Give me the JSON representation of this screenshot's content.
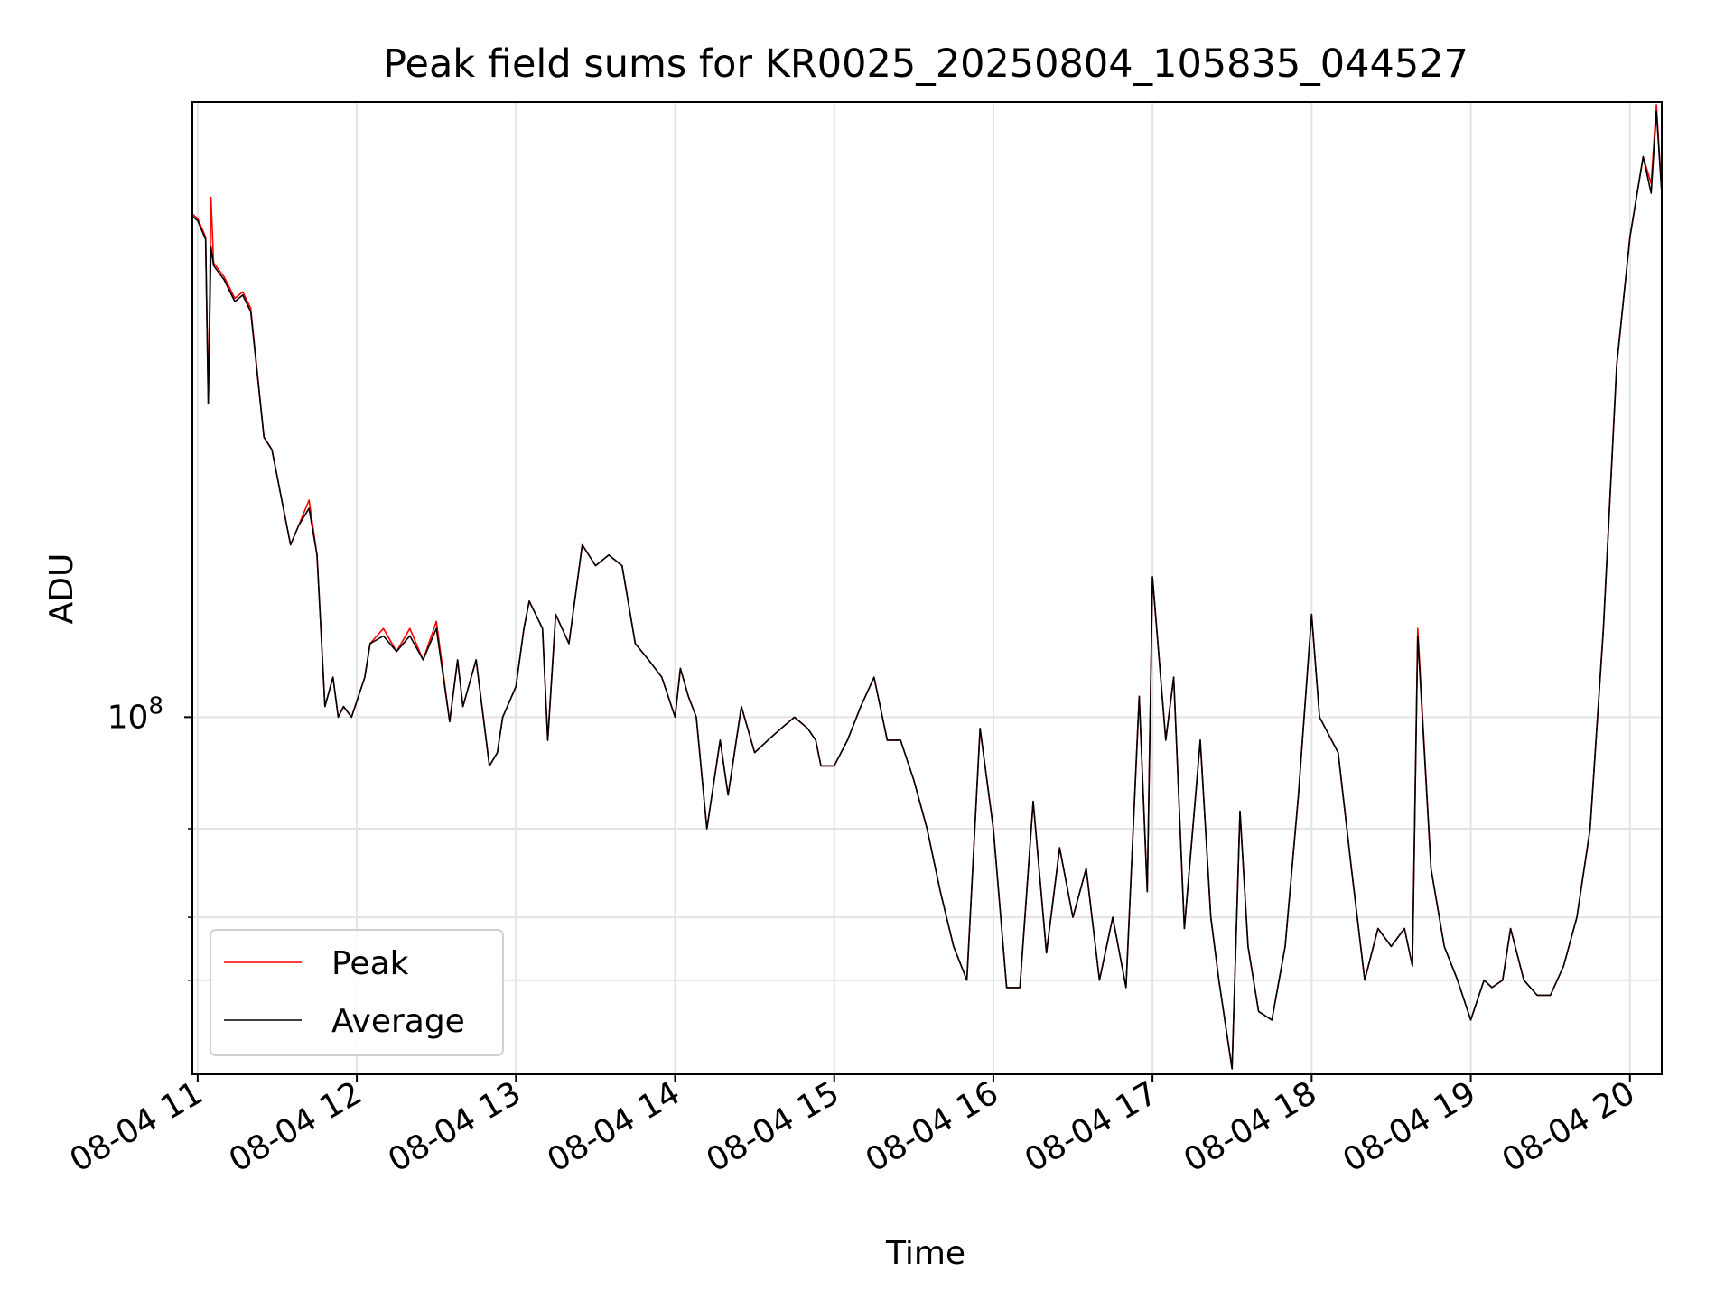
{
  "chart_data": {
    "type": "line",
    "title": "Peak field sums for KR0025_20250804_105835_044527",
    "xlabel": "Time",
    "ylabel": "ADU",
    "yscale": "log",
    "ylim": [
      19500000.0,
      1670000000.0
    ],
    "xlim": [
      "2025-08-04 10:58",
      "2025-08-04 20:12"
    ],
    "grid": true,
    "legend_position": "lower-left",
    "x_tick_labels": [
      "08-04 11",
      "08-04 12",
      "08-04 13",
      "08-04 14",
      "08-04 15",
      "08-04 16",
      "08-04 17",
      "08-04 18",
      "08-04 19",
      "08-04 20"
    ],
    "y_tick_label": {
      "base": "10",
      "exponent": "8"
    },
    "y_major_ticks": [
      100000000.0
    ],
    "y_minor_ticks": [
      30000000.0,
      40000000.0,
      60000000.0
    ],
    "colors": {
      "Peak": "#ff0000",
      "Average": "#000000"
    },
    "x": [
      "10:58",
      "11:00",
      "11:03",
      "11:04",
      "11:05",
      "11:06",
      "11:10",
      "11:14",
      "11:17",
      "11:20",
      "11:25",
      "11:28",
      "11:35",
      "11:38",
      "11:42",
      "11:45",
      "11:48",
      "11:51",
      "11:53",
      "11:55",
      "11:58",
      "12:03",
      "12:05",
      "12:10",
      "12:15",
      "12:20",
      "12:25",
      "12:30",
      "12:35",
      "12:38",
      "12:40",
      "12:45",
      "12:50",
      "12:53",
      "12:55",
      "13:00",
      "13:03",
      "13:05",
      "13:10",
      "13:12",
      "13:15",
      "13:20",
      "13:25",
      "13:30",
      "13:35",
      "13:40",
      "13:45",
      "13:50",
      "13:55",
      "14:00",
      "14:02",
      "14:05",
      "14:08",
      "14:12",
      "14:17",
      "14:20",
      "14:25",
      "14:30",
      "14:35",
      "14:40",
      "14:45",
      "14:50",
      "14:53",
      "14:55",
      "15:00",
      "15:05",
      "15:10",
      "15:15",
      "15:20",
      "15:25",
      "15:30",
      "15:35",
      "15:40",
      "15:45",
      "15:50",
      "15:55",
      "16:00",
      "16:05",
      "16:10",
      "16:15",
      "16:20",
      "16:25",
      "16:30",
      "16:35",
      "16:40",
      "16:45",
      "16:50",
      "16:55",
      "16:58",
      "17:00",
      "17:05",
      "17:08",
      "17:12",
      "17:18",
      "17:22",
      "17:25",
      "17:30",
      "17:33",
      "17:36",
      "17:40",
      "17:45",
      "17:50",
      "17:55",
      "18:00",
      "18:03",
      "18:10",
      "18:15",
      "18:20",
      "18:25",
      "18:30",
      "18:35",
      "18:38",
      "18:40",
      "18:45",
      "18:50",
      "18:55",
      "19:00",
      "19:05",
      "19:08",
      "19:12",
      "19:15",
      "19:20",
      "19:25",
      "19:30",
      "19:35",
      "19:40",
      "19:45",
      "19:50",
      "19:55",
      "20:00",
      "20:05",
      "20:08",
      "20:10",
      "20:12"
    ],
    "series": [
      {
        "name": "Peak",
        "values": [
          1000000000.0,
          980000000.0,
          900000000.0,
          420000000.0,
          1080000000.0,
          800000000.0,
          750000000.0,
          680000000.0,
          700000000.0,
          650000000.0,
          360000000.0,
          340000000.0,
          220000000.0,
          240000000.0,
          270000000.0,
          210000000.0,
          105000000.0,
          120000000.0,
          100000000.0,
          105000000.0,
          100000000.0,
          120000000.0,
          140000000.0,
          150000000.0,
          135000000.0,
          150000000.0,
          130000000.0,
          155000000.0,
          98000000.0,
          130000000.0,
          105000000.0,
          130000000.0,
          80000000.0,
          85000000.0,
          100000000.0,
          115000000.0,
          150000000.0,
          170000000.0,
          150000000.0,
          90000000.0,
          160000000.0,
          140000000.0,
          220000000.0,
          200000000.0,
          210000000.0,
          200000000.0,
          140000000.0,
          130000000.0,
          120000000.0,
          100000000.0,
          125000000.0,
          110000000.0,
          100000000.0,
          60000000.0,
          90000000.0,
          70000000.0,
          105000000.0,
          85000000.0,
          90000000.0,
          95000000.0,
          100000000.0,
          95000000.0,
          90000000.0,
          80000000.0,
          80000000.0,
          90000000.0,
          105000000.0,
          120000000.0,
          90000000.0,
          90000000.0,
          75000000.0,
          60000000.0,
          45000000.0,
          35000000.0,
          30000000.0,
          95000000.0,
          60000000.0,
          29000000.0,
          29000000.0,
          68000000.0,
          34000000.0,
          55000000.0,
          40000000.0,
          50000000.0,
          30000000.0,
          40000000.0,
          29000000.0,
          110000000.0,
          45000000.0,
          190000000.0,
          90000000.0,
          120000000.0,
          38000000.0,
          90000000.0,
          40000000.0,
          30000000.0,
          20000000.0,
          65000000.0,
          35000000.0,
          26000000.0,
          25000000.0,
          35000000.0,
          70000000.0,
          160000000.0,
          100000000.0,
          85000000.0,
          50000000.0,
          30000000.0,
          38000000.0,
          35000000.0,
          38000000.0,
          32000000.0,
          150000000.0,
          50000000.0,
          35000000.0,
          30000000.0,
          25000000.0,
          30000000.0,
          29000000.0,
          30000000.0,
          38000000.0,
          30000000.0,
          28000000.0,
          28000000.0,
          32000000.0,
          40000000.0,
          60000000.0,
          150000000.0,
          500000000.0,
          900000000.0,
          1300000000.0,
          1150000000.0,
          1650000000.0,
          1100000000.0
        ]
      },
      {
        "name": "Average",
        "values": [
          990000000.0,
          970000000.0,
          890000000.0,
          420000000.0,
          860000000.0,
          790000000.0,
          740000000.0,
          670000000.0,
          690000000.0,
          640000000.0,
          360000000.0,
          340000000.0,
          220000000.0,
          240000000.0,
          260000000.0,
          210000000.0,
          105000000.0,
          120000000.0,
          100000000.0,
          105000000.0,
          100000000.0,
          120000000.0,
          140000000.0,
          145000000.0,
          135000000.0,
          145000000.0,
          130000000.0,
          150000000.0,
          98000000.0,
          130000000.0,
          105000000.0,
          130000000.0,
          80000000.0,
          85000000.0,
          100000000.0,
          115000000.0,
          150000000.0,
          170000000.0,
          150000000.0,
          90000000.0,
          160000000.0,
          140000000.0,
          220000000.0,
          200000000.0,
          210000000.0,
          200000000.0,
          140000000.0,
          130000000.0,
          120000000.0,
          100000000.0,
          125000000.0,
          110000000.0,
          100000000.0,
          60000000.0,
          90000000.0,
          70000000.0,
          105000000.0,
          85000000.0,
          90000000.0,
          95000000.0,
          100000000.0,
          95000000.0,
          90000000.0,
          80000000.0,
          80000000.0,
          90000000.0,
          105000000.0,
          120000000.0,
          90000000.0,
          90000000.0,
          75000000.0,
          60000000.0,
          45000000.0,
          35000000.0,
          30000000.0,
          95000000.0,
          60000000.0,
          29000000.0,
          29000000.0,
          68000000.0,
          34000000.0,
          55000000.0,
          40000000.0,
          50000000.0,
          30000000.0,
          40000000.0,
          29000000.0,
          110000000.0,
          45000000.0,
          190000000.0,
          90000000.0,
          120000000.0,
          38000000.0,
          90000000.0,
          40000000.0,
          30000000.0,
          20000000.0,
          65000000.0,
          35000000.0,
          26000000.0,
          25000000.0,
          35000000.0,
          70000000.0,
          160000000.0,
          100000000.0,
          85000000.0,
          50000000.0,
          30000000.0,
          38000000.0,
          35000000.0,
          38000000.0,
          32000000.0,
          145000000.0,
          50000000.0,
          35000000.0,
          30000000.0,
          25000000.0,
          30000000.0,
          29000000.0,
          30000000.0,
          38000000.0,
          30000000.0,
          28000000.0,
          28000000.0,
          32000000.0,
          40000000.0,
          60000000.0,
          150000000.0,
          500000000.0,
          900000000.0,
          1300000000.0,
          1100000000.0,
          1600000000.0,
          1100000000.0
        ]
      }
    ]
  }
}
